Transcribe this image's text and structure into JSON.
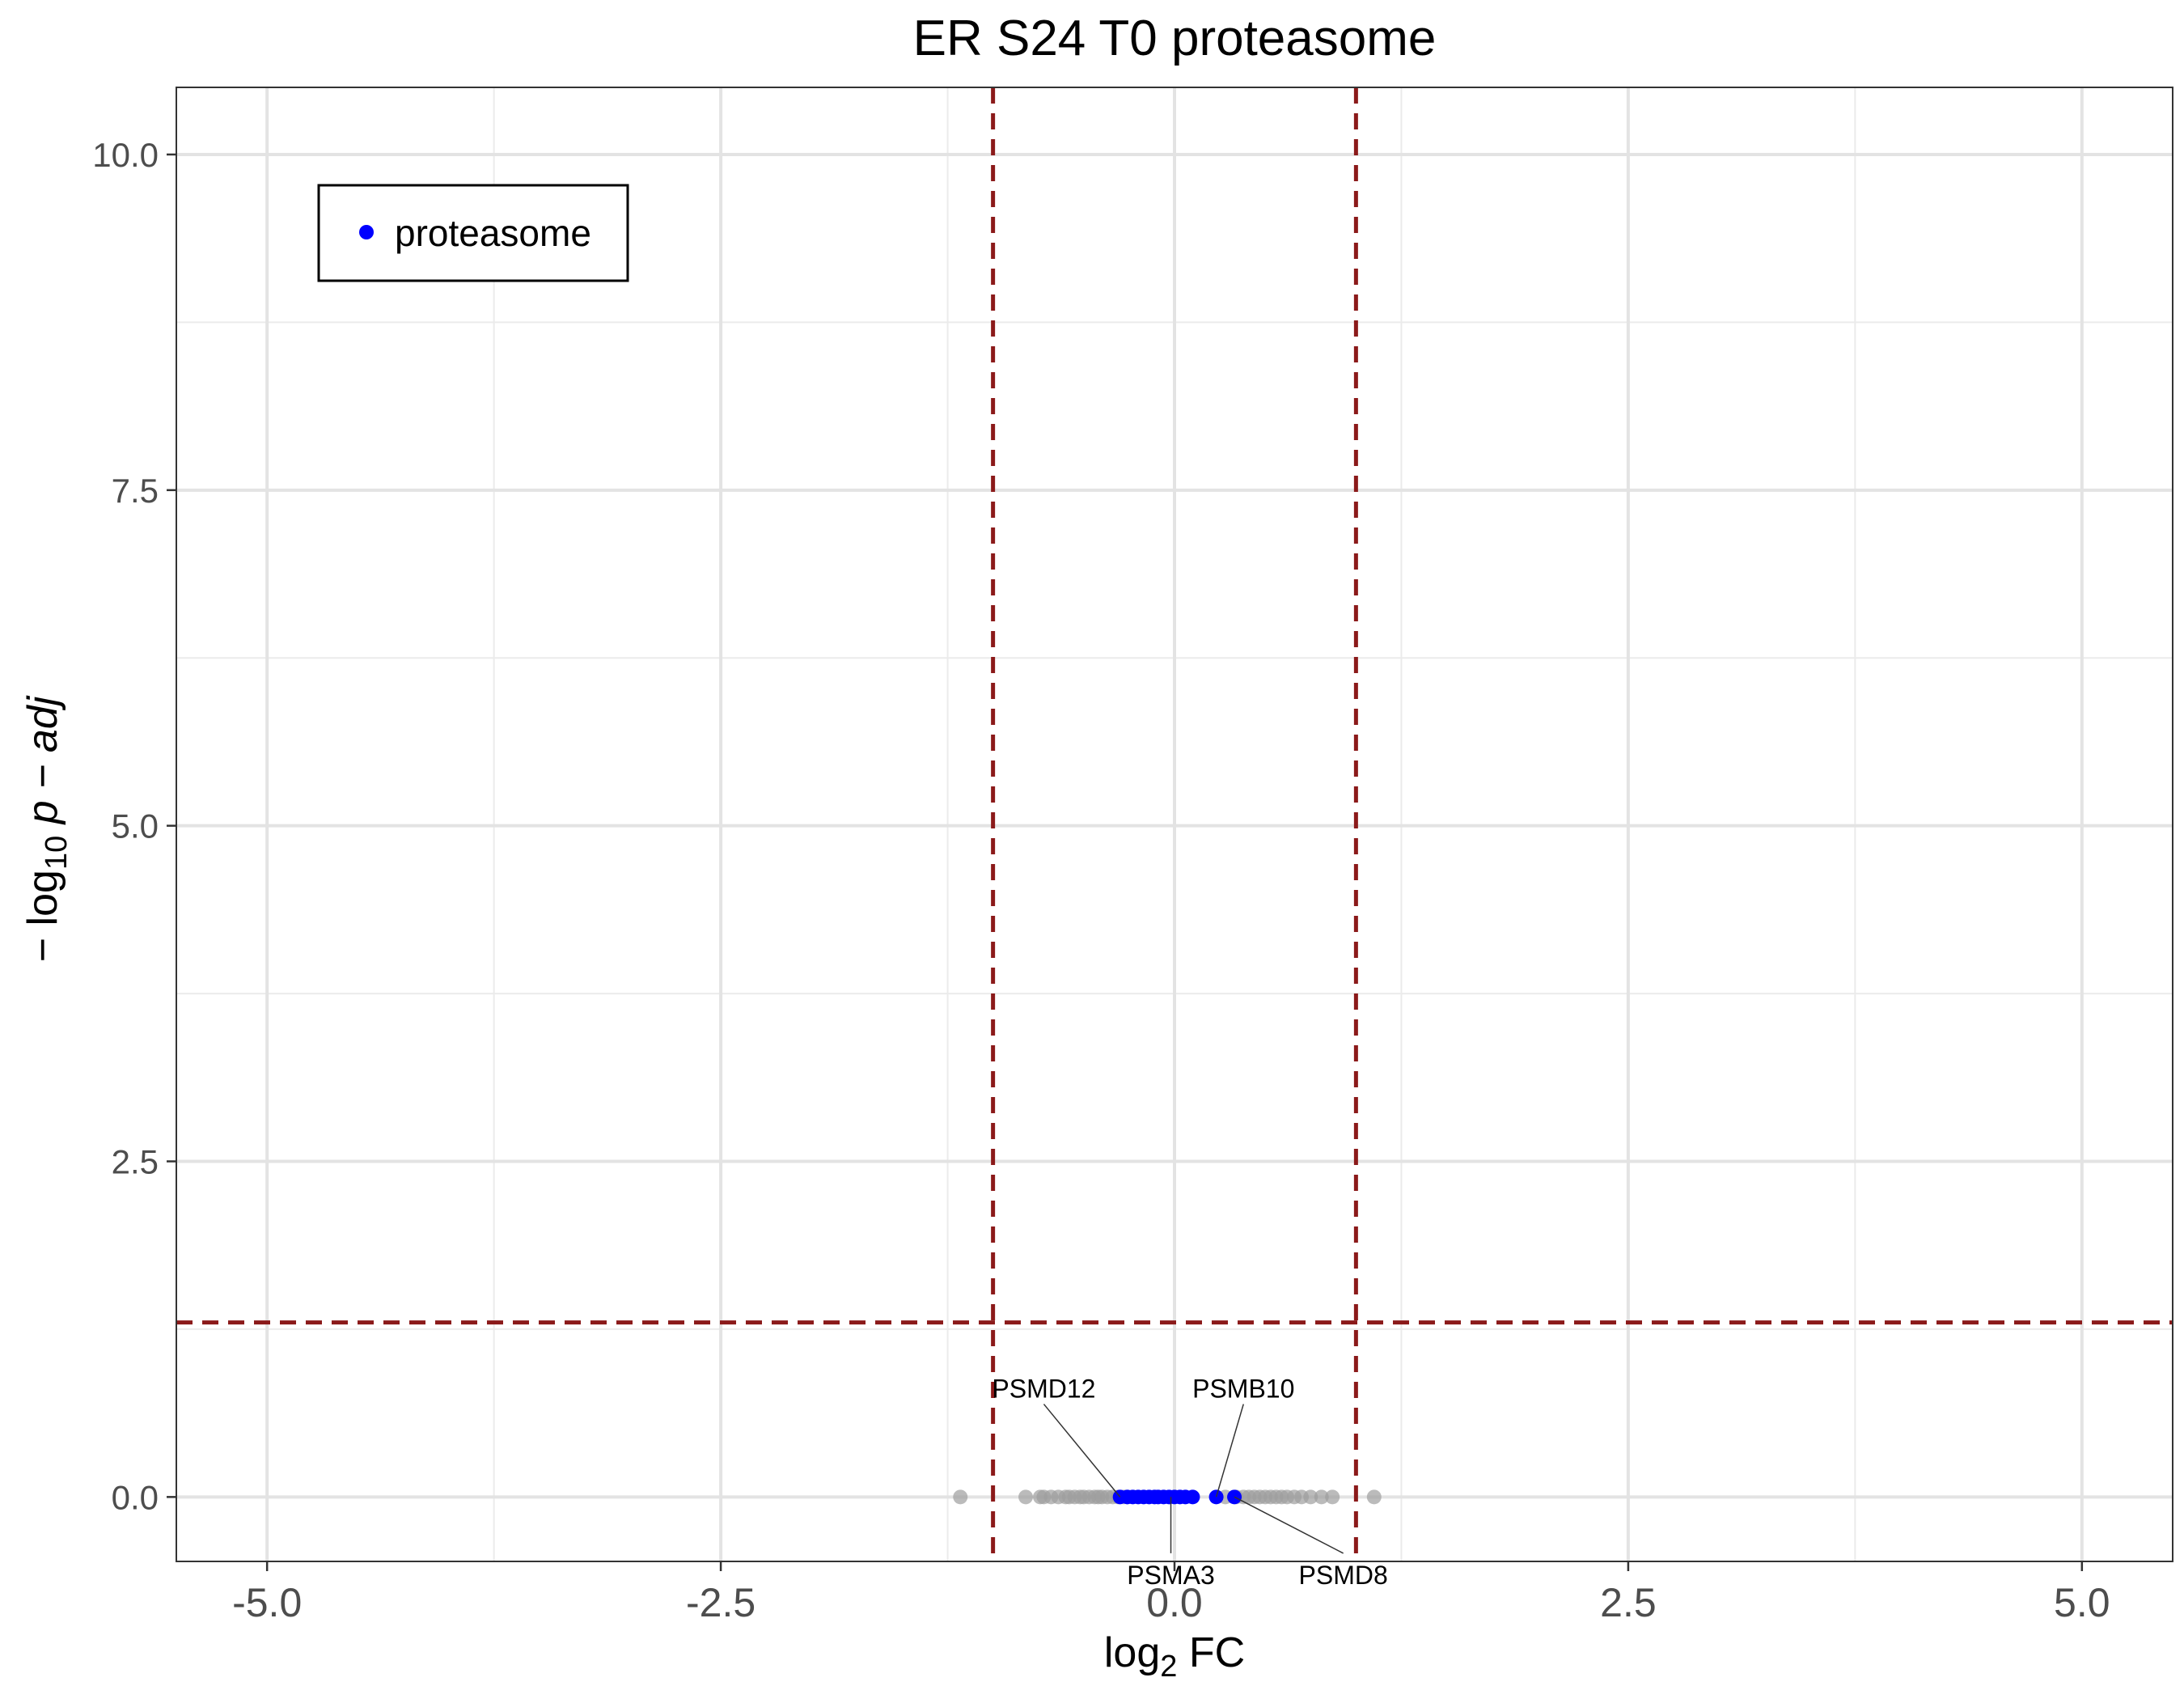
{
  "chart_data": {
    "type": "scatter",
    "title": "ER S24 T0 proteasome",
    "xlabel": {
      "prefix": "log",
      "sub": "2",
      "suffix": " FC"
    },
    "ylabel": {
      "prefix": "− log",
      "sub": "10",
      "suffix": " p − adj"
    },
    "xlim": [
      -5.5,
      5.5
    ],
    "ylim": [
      -0.48,
      10.5
    ],
    "x_ticks": [
      -5.0,
      -2.5,
      0.0,
      2.5,
      5.0
    ],
    "x_tick_labels": [
      "-5.0",
      "-2.5",
      "0.0",
      "2.5",
      "5.0"
    ],
    "y_ticks": [
      0.0,
      2.5,
      5.0,
      7.5,
      10.0
    ],
    "y_tick_labels": [
      "0.0",
      "2.5",
      "5.0",
      "7.5",
      "10.0"
    ],
    "grid": true,
    "thresholds": {
      "vertical": [
        -1,
        1
      ],
      "horizontal": 1.3,
      "color": "#8B1A1A"
    },
    "legend": {
      "position": "top-left",
      "entries": [
        {
          "label": "proteasome",
          "color": "#0000FF"
        }
      ]
    },
    "series": [
      {
        "name": "background",
        "color": "#9E9E9E",
        "x": [
          -1.18,
          -0.82,
          -0.74,
          -0.72,
          -0.68,
          -0.64,
          -0.6,
          -0.58,
          -0.55,
          -0.52,
          -0.5,
          -0.47,
          -0.44,
          -0.42,
          -0.4,
          -0.37,
          -0.34,
          -0.31,
          -0.28,
          -0.26,
          0.28,
          0.34,
          0.38,
          0.41,
          0.44,
          0.47,
          0.5,
          0.53,
          0.56,
          0.59,
          0.62,
          0.66,
          0.7,
          0.75,
          0.81,
          0.87,
          1.1
        ],
        "y": [
          0,
          0,
          0,
          0,
          0,
          0,
          0,
          0,
          0,
          0,
          0,
          0,
          0,
          0,
          0,
          0,
          0,
          0,
          0,
          0,
          0,
          0,
          0,
          0,
          0,
          0,
          0,
          0,
          0,
          0,
          0,
          0,
          0,
          0,
          0,
          0,
          0
        ]
      },
      {
        "name": "proteasome",
        "color": "#0000FF",
        "x": [
          -0.3,
          -0.26,
          -0.23,
          -0.2,
          -0.17,
          -0.14,
          -0.11,
          -0.09,
          -0.06,
          -0.03,
          0.0,
          0.03,
          0.06,
          0.1,
          0.23,
          0.33
        ],
        "y": [
          0,
          0,
          0,
          0,
          0,
          0,
          0,
          0,
          0,
          0,
          0,
          0,
          0,
          0,
          0,
          0
        ]
      }
    ],
    "annotations": [
      {
        "text": "PSMD12",
        "x": -0.3,
        "y": 0,
        "dx": -0.42,
        "dy": 0.74
      },
      {
        "text": "PSMB10",
        "x": 0.23,
        "y": 0,
        "dx": 0.15,
        "dy": 0.74
      },
      {
        "text": "PSMA3",
        "x": -0.02,
        "y": 0,
        "dx": 0.0,
        "dy": -0.6
      },
      {
        "text": "PSMD8",
        "x": 0.33,
        "y": 0,
        "dx": 0.6,
        "dy": -0.6
      }
    ]
  }
}
